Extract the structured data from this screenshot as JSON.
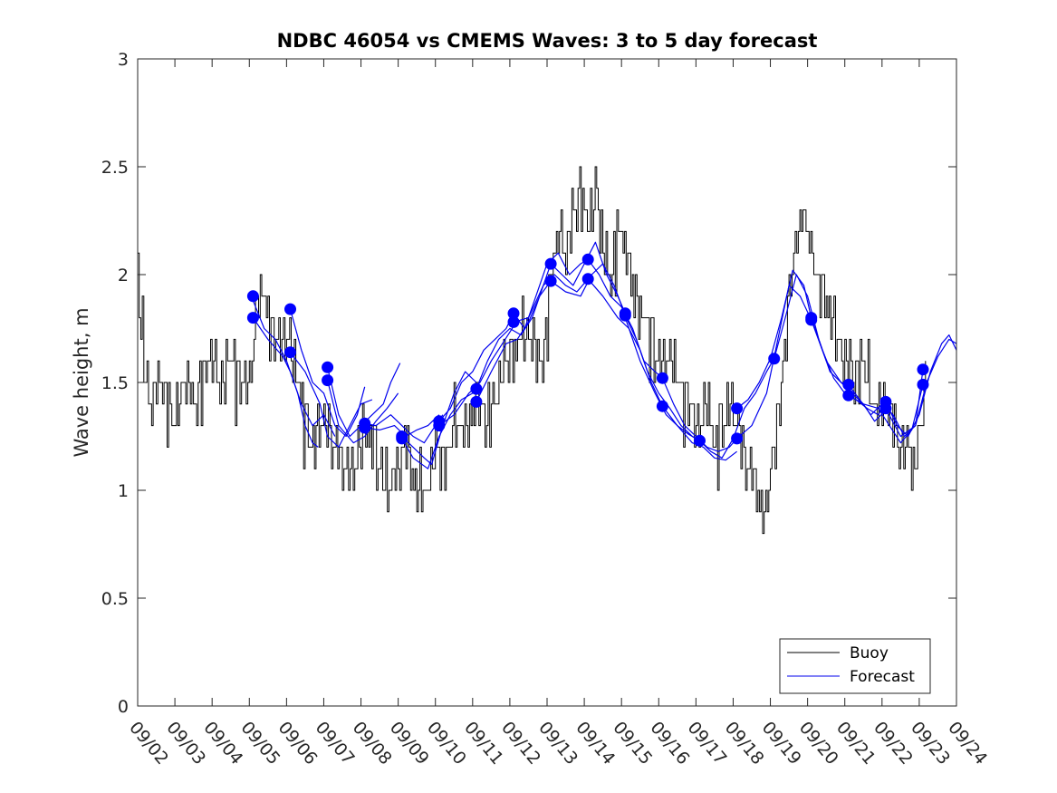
{
  "chart_data": {
    "type": "line",
    "title": "NDBC 46054 vs CMEMS Waves: 3 to 5 day forecast",
    "xlabel": "",
    "ylabel": "Wave height, m",
    "ylim": [
      0,
      3
    ],
    "xlim": [
      0,
      22
    ],
    "yticks": [
      0,
      0.5,
      1,
      1.5,
      2,
      2.5,
      3
    ],
    "ytick_labels": [
      "0",
      "0.5",
      "1",
      "1.5",
      "2",
      "2.5",
      "3"
    ],
    "xtick_labels": [
      "09/02",
      "09/03",
      "09/04",
      "09/05",
      "09/06",
      "09/07",
      "09/08",
      "09/09",
      "09/10",
      "09/11",
      "09/12",
      "09/13",
      "09/14",
      "09/15",
      "09/16",
      "09/17",
      "09/18",
      "09/19",
      "09/20",
      "09/21",
      "09/22",
      "09/23",
      "09/24"
    ],
    "legend": {
      "position": "bottom-right",
      "entries": [
        "Buoy",
        "Forecast"
      ]
    },
    "colors": {
      "buoy": "#000000",
      "forecast": "#0000ee",
      "marker": "#0000ff",
      "axis": "#262626"
    },
    "buoy_anchors": [
      [
        0.0,
        2.05
      ],
      [
        0.05,
        1.8
      ],
      [
        0.2,
        1.5
      ],
      [
        0.35,
        1.4
      ],
      [
        0.6,
        1.55
      ],
      [
        0.8,
        1.4
      ],
      [
        0.95,
        1.3
      ],
      [
        1.1,
        1.4
      ],
      [
        1.3,
        1.55
      ],
      [
        1.5,
        1.4
      ],
      [
        1.7,
        1.5
      ],
      [
        2.0,
        1.6
      ],
      [
        2.2,
        1.5
      ],
      [
        2.5,
        1.6
      ],
      [
        2.8,
        1.45
      ],
      [
        3.0,
        1.5
      ],
      [
        3.2,
        1.85
      ],
      [
        3.35,
        1.95
      ],
      [
        3.5,
        1.8
      ],
      [
        3.7,
        1.65
      ],
      [
        3.9,
        1.75
      ],
      [
        4.1,
        1.65
      ],
      [
        4.3,
        1.5
      ],
      [
        4.5,
        1.3
      ],
      [
        4.7,
        1.2
      ],
      [
        4.9,
        1.35
      ],
      [
        5.1,
        1.3
      ],
      [
        5.3,
        1.2
      ],
      [
        5.5,
        1.1
      ],
      [
        5.7,
        1.05
      ],
      [
        5.9,
        1.15
      ],
      [
        6.1,
        1.3
      ],
      [
        6.3,
        1.2
      ],
      [
        6.5,
        1.1
      ],
      [
        6.7,
        1.0
      ],
      [
        6.9,
        1.1
      ],
      [
        7.2,
        1.2
      ],
      [
        7.4,
        1.05
      ],
      [
        7.6,
        0.95
      ],
      [
        7.8,
        1.05
      ],
      [
        8.0,
        1.2
      ],
      [
        8.2,
        1.1
      ],
      [
        8.4,
        1.25
      ],
      [
        8.6,
        1.35
      ],
      [
        8.8,
        1.25
      ],
      [
        9.0,
        1.35
      ],
      [
        9.2,
        1.45
      ],
      [
        9.4,
        1.3
      ],
      [
        9.6,
        1.4
      ],
      [
        9.8,
        1.6
      ],
      [
        10.0,
        1.55
      ],
      [
        10.2,
        1.65
      ],
      [
        10.4,
        1.75
      ],
      [
        10.6,
        1.7
      ],
      [
        10.8,
        1.6
      ],
      [
        10.95,
        1.7
      ],
      [
        11.1,
        2.0
      ],
      [
        11.3,
        2.2
      ],
      [
        11.5,
        2.1
      ],
      [
        11.7,
        2.3
      ],
      [
        11.9,
        2.4
      ],
      [
        12.1,
        2.2
      ],
      [
        12.3,
        2.4
      ],
      [
        12.5,
        2.1
      ],
      [
        12.7,
        2.0
      ],
      [
        12.9,
        2.2
      ],
      [
        13.1,
        2.1
      ],
      [
        13.3,
        1.95
      ],
      [
        13.5,
        1.8
      ],
      [
        13.7,
        1.75
      ],
      [
        13.9,
        1.6
      ],
      [
        14.1,
        1.55
      ],
      [
        14.3,
        1.65
      ],
      [
        14.5,
        1.5
      ],
      [
        14.7,
        1.4
      ],
      [
        14.9,
        1.35
      ],
      [
        15.1,
        1.3
      ],
      [
        15.3,
        1.4
      ],
      [
        15.5,
        1.2
      ],
      [
        15.7,
        1.3
      ],
      [
        15.9,
        1.4
      ],
      [
        16.1,
        1.3
      ],
      [
        16.3,
        1.15
      ],
      [
        16.5,
        1.05
      ],
      [
        16.7,
        0.95
      ],
      [
        16.8,
        0.85
      ],
      [
        16.95,
        1.0
      ],
      [
        17.1,
        1.2
      ],
      [
        17.3,
        1.5
      ],
      [
        17.5,
        1.9
      ],
      [
        17.7,
        2.2
      ],
      [
        17.9,
        2.3
      ],
      [
        18.1,
        2.1
      ],
      [
        18.3,
        1.95
      ],
      [
        18.5,
        1.85
      ],
      [
        18.7,
        1.75
      ],
      [
        18.9,
        1.65
      ],
      [
        19.1,
        1.6
      ],
      [
        19.3,
        1.5
      ],
      [
        19.5,
        1.6
      ],
      [
        19.7,
        1.45
      ],
      [
        19.9,
        1.35
      ],
      [
        20.1,
        1.4
      ],
      [
        20.3,
        1.3
      ],
      [
        20.5,
        1.2
      ],
      [
        20.7,
        1.25
      ],
      [
        20.85,
        1.05
      ],
      [
        21.0,
        1.3
      ],
      [
        21.2,
        1.5
      ]
    ],
    "forecast_series": [
      {
        "name": "Forecast",
        "x": [
          3.1,
          3.4,
          3.7,
          4.0,
          4.3,
          4.5,
          4.7,
          4.85
        ],
        "values": [
          1.88,
          1.75,
          1.7,
          1.6,
          1.45,
          1.3,
          1.22,
          1.2
        ]
      },
      {
        "name": "Forecast",
        "x": [
          3.1,
          3.5,
          3.9,
          4.1,
          4.4,
          4.7,
          5.0,
          5.3
        ],
        "values": [
          1.8,
          1.7,
          1.62,
          1.55,
          1.4,
          1.3,
          1.35,
          1.25
        ]
      },
      {
        "name": "Forecast",
        "x": [
          4.1,
          4.4,
          4.7,
          5.0,
          5.3,
          5.6,
          5.9,
          6.1
        ],
        "values": [
          1.84,
          1.65,
          1.5,
          1.45,
          1.3,
          1.25,
          1.35,
          1.48
        ]
      },
      {
        "name": "Forecast",
        "x": [
          4.1,
          4.5,
          4.9,
          5.1,
          5.4,
          5.7,
          6.0,
          6.3
        ],
        "values": [
          1.64,
          1.55,
          1.4,
          1.25,
          1.2,
          1.3,
          1.4,
          1.42
        ]
      },
      {
        "name": "Forecast",
        "x": [
          5.1,
          5.4,
          5.7,
          6.0,
          6.3,
          6.6,
          6.8,
          7.05
        ],
        "values": [
          1.57,
          1.35,
          1.25,
          1.3,
          1.35,
          1.4,
          1.5,
          1.59
        ]
      },
      {
        "name": "Forecast",
        "x": [
          5.1,
          5.4,
          5.8,
          6.1,
          6.4,
          6.7,
          7.0
        ],
        "values": [
          1.51,
          1.3,
          1.22,
          1.25,
          1.32,
          1.38,
          1.45
        ]
      },
      {
        "name": "Forecast",
        "x": [
          6.1,
          6.4,
          6.8,
          7.1,
          7.4,
          7.7,
          8.0,
          8.2
        ],
        "values": [
          1.31,
          1.3,
          1.35,
          1.3,
          1.25,
          1.22,
          1.3,
          1.35
        ]
      },
      {
        "name": "Forecast",
        "x": [
          6.1,
          6.5,
          6.9,
          7.2,
          7.5,
          7.8,
          8.1
        ],
        "values": [
          1.29,
          1.28,
          1.3,
          1.25,
          1.28,
          1.3,
          1.35
        ]
      },
      {
        "name": "Forecast",
        "x": [
          7.1,
          7.4,
          7.7,
          7.9,
          8.2,
          8.5,
          8.8,
          9.1
        ],
        "values": [
          1.25,
          1.2,
          1.15,
          1.12,
          1.3,
          1.45,
          1.55,
          1.5
        ]
      },
      {
        "name": "Forecast",
        "x": [
          7.1,
          7.4,
          7.8,
          8.1,
          8.4,
          8.7,
          9.0
        ],
        "values": [
          1.24,
          1.15,
          1.1,
          1.25,
          1.35,
          1.42,
          1.45
        ]
      },
      {
        "name": "Forecast",
        "x": [
          8.1,
          8.4,
          8.7,
          9.0,
          9.3,
          9.6,
          9.9,
          10.1
        ],
        "values": [
          1.32,
          1.38,
          1.5,
          1.55,
          1.65,
          1.7,
          1.75,
          1.82
        ]
      },
      {
        "name": "Forecast",
        "x": [
          8.1,
          8.5,
          8.9,
          9.2,
          9.5,
          9.8,
          10.1
        ],
        "values": [
          1.3,
          1.35,
          1.45,
          1.5,
          1.6,
          1.68,
          1.76
        ]
      },
      {
        "name": "Forecast",
        "x": [
          9.1,
          9.4,
          9.7,
          10.0,
          10.3,
          10.6,
          10.9,
          11.1
        ],
        "values": [
          1.47,
          1.6,
          1.7,
          1.75,
          1.72,
          1.8,
          1.95,
          2.05
        ]
      },
      {
        "name": "Forecast",
        "x": [
          9.1,
          9.5,
          9.9,
          10.2,
          10.5,
          10.8,
          11.1
        ],
        "values": [
          1.41,
          1.55,
          1.68,
          1.7,
          1.78,
          1.9,
          1.97
        ]
      },
      {
        "name": "Forecast",
        "x": [
          10.1,
          10.4,
          10.7,
          11.0,
          11.3,
          11.6,
          11.9,
          12.1
        ],
        "values": [
          1.82,
          1.75,
          1.9,
          2.05,
          2.1,
          2.0,
          2.05,
          2.07
        ]
      },
      {
        "name": "Forecast",
        "x": [
          10.1,
          10.5,
          10.9,
          11.2,
          11.5,
          11.8,
          12.1
        ],
        "values": [
          1.78,
          1.8,
          1.95,
          2.0,
          1.95,
          1.92,
          1.98
        ]
      },
      {
        "name": "Forecast",
        "x": [
          11.1,
          11.4,
          11.7,
          12.0,
          12.3,
          12.6,
          12.9,
          13.1
        ],
        "values": [
          2.05,
          2.0,
          1.95,
          2.05,
          2.15,
          2.0,
          1.9,
          1.82
        ]
      },
      {
        "name": "Forecast",
        "x": [
          11.1,
          11.5,
          11.9,
          12.2,
          12.5,
          12.8,
          13.1
        ],
        "values": [
          1.97,
          1.92,
          1.9,
          2.0,
          2.05,
          1.95,
          1.81
        ]
      },
      {
        "name": "Forecast",
        "x": [
          12.1,
          12.4,
          12.7,
          13.0,
          13.3,
          13.6,
          13.9,
          14.1
        ],
        "values": [
          2.07,
          2.0,
          1.9,
          1.85,
          1.75,
          1.6,
          1.55,
          1.52
        ]
      },
      {
        "name": "Forecast",
        "x": [
          12.1,
          12.5,
          12.9,
          13.2,
          13.5,
          13.8,
          14.1
        ],
        "values": [
          1.98,
          1.9,
          1.8,
          1.75,
          1.65,
          1.5,
          1.39
        ]
      },
      {
        "name": "Forecast",
        "x": [
          13.1,
          13.4,
          13.7,
          14.0,
          14.3,
          14.6,
          14.9,
          15.1
        ],
        "values": [
          1.81,
          1.7,
          1.55,
          1.45,
          1.38,
          1.3,
          1.25,
          1.23
        ]
      },
      {
        "name": "Forecast",
        "x": [
          13.1,
          13.5,
          13.9,
          14.2,
          14.5,
          14.8,
          15.1
        ],
        "values": [
          1.8,
          1.6,
          1.45,
          1.35,
          1.3,
          1.26,
          1.23
        ]
      },
      {
        "name": "Forecast",
        "x": [
          14.1,
          14.4,
          14.7,
          15.0,
          15.3,
          15.6,
          15.9,
          16.1
        ],
        "values": [
          1.52,
          1.4,
          1.3,
          1.25,
          1.2,
          1.18,
          1.2,
          1.24
        ]
      },
      {
        "name": "Forecast",
        "x": [
          14.1,
          14.5,
          14.9,
          15.2,
          15.5,
          15.8,
          16.1
        ],
        "values": [
          1.39,
          1.3,
          1.22,
          1.2,
          1.15,
          1.14,
          1.18
        ]
      },
      {
        "name": "Forecast",
        "x": [
          15.1,
          15.4,
          15.7,
          16.0,
          16.3,
          16.6,
          16.9,
          17.1
        ],
        "values": [
          1.23,
          1.18,
          1.15,
          1.24,
          1.38,
          1.45,
          1.55,
          1.61
        ]
      },
      {
        "name": "Forecast",
        "x": [
          16.1,
          16.4,
          16.7,
          17.0,
          17.3,
          17.6,
          17.9,
          18.1
        ],
        "values": [
          1.38,
          1.42,
          1.5,
          1.61,
          1.8,
          2.02,
          1.95,
          1.8
        ]
      },
      {
        "name": "Forecast",
        "x": [
          16.1,
          16.5,
          16.9,
          17.2,
          17.5,
          17.8,
          18.1
        ],
        "values": [
          1.24,
          1.3,
          1.45,
          1.7,
          1.95,
          1.9,
          1.79
        ]
      },
      {
        "name": "Forecast",
        "x": [
          17.1,
          17.4,
          17.7,
          18.0,
          18.3,
          18.6,
          18.9,
          19.1
        ],
        "values": [
          1.61,
          1.8,
          2.0,
          1.9,
          1.7,
          1.55,
          1.5,
          1.49
        ]
      },
      {
        "name": "Forecast",
        "x": [
          18.1,
          18.4,
          18.7,
          19.0,
          19.3,
          19.6,
          19.9,
          20.1
        ],
        "values": [
          1.8,
          1.65,
          1.52,
          1.45,
          1.42,
          1.38,
          1.35,
          1.41
        ]
      },
      {
        "name": "Forecast",
        "x": [
          18.1,
          18.5,
          18.9,
          19.2,
          19.5,
          19.8,
          20.1
        ],
        "values": [
          1.79,
          1.6,
          1.5,
          1.45,
          1.4,
          1.32,
          1.37
        ]
      },
      {
        "name": "Forecast",
        "x": [
          19.1,
          19.4,
          19.7,
          20.0,
          20.3,
          20.6,
          20.9,
          21.1
        ],
        "values": [
          1.49,
          1.42,
          1.35,
          1.4,
          1.35,
          1.25,
          1.3,
          1.56
        ]
      },
      {
        "name": "Forecast",
        "x": [
          19.1,
          19.5,
          19.9,
          20.2,
          20.5,
          20.8,
          21.1
        ],
        "values": [
          1.44,
          1.4,
          1.38,
          1.3,
          1.22,
          1.28,
          1.49
        ]
      },
      {
        "name": "Forecast",
        "x": [
          20.1,
          20.4,
          20.7,
          21.0,
          21.3,
          21.6,
          21.8,
          22.0
        ],
        "values": [
          1.41,
          1.3,
          1.25,
          1.35,
          1.55,
          1.68,
          1.72,
          1.65
        ]
      },
      {
        "name": "Forecast",
        "x": [
          20.1,
          20.5,
          20.9,
          21.2,
          21.5,
          21.8,
          22.0
        ],
        "values": [
          1.38,
          1.25,
          1.3,
          1.5,
          1.62,
          1.7,
          1.68
        ]
      }
    ],
    "markers": [
      [
        3.1,
        1.9
      ],
      [
        3.1,
        1.8
      ],
      [
        4.1,
        1.84
      ],
      [
        4.1,
        1.64
      ],
      [
        5.1,
        1.57
      ],
      [
        5.1,
        1.51
      ],
      [
        6.1,
        1.31
      ],
      [
        6.1,
        1.29
      ],
      [
        7.1,
        1.25
      ],
      [
        7.1,
        1.24
      ],
      [
        8.1,
        1.32
      ],
      [
        8.1,
        1.3
      ],
      [
        9.1,
        1.47
      ],
      [
        9.1,
        1.41
      ],
      [
        10.1,
        1.82
      ],
      [
        10.1,
        1.78
      ],
      [
        11.1,
        2.05
      ],
      [
        11.1,
        1.97
      ],
      [
        12.1,
        2.07
      ],
      [
        12.1,
        1.98
      ],
      [
        13.1,
        1.82
      ],
      [
        13.1,
        1.81
      ],
      [
        14.1,
        1.52
      ],
      [
        14.1,
        1.39
      ],
      [
        15.1,
        1.23
      ],
      [
        16.1,
        1.38
      ],
      [
        16.1,
        1.24
      ],
      [
        17.1,
        1.61
      ],
      [
        18.1,
        1.8
      ],
      [
        18.1,
        1.79
      ],
      [
        19.1,
        1.49
      ],
      [
        19.1,
        1.44
      ],
      [
        20.1,
        1.41
      ],
      [
        20.1,
        1.38
      ],
      [
        21.1,
        1.56
      ],
      [
        21.1,
        1.49
      ]
    ]
  }
}
